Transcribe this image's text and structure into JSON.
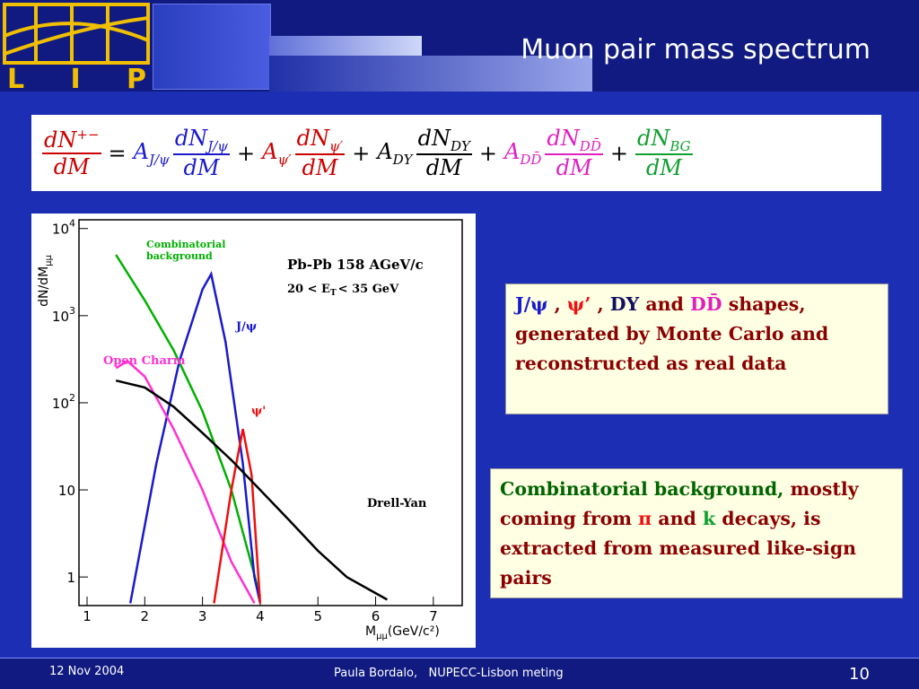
{
  "header": {
    "title": "Muon pair mass spectrum",
    "logo": "L I P"
  },
  "formula": {
    "lhs": {
      "num": "dN",
      "sup": "+−",
      "den": "dM",
      "color": "#cc0000"
    },
    "equals": "=",
    "plus": "+",
    "terms": [
      {
        "coef": "A",
        "sub": "J/ψ",
        "num": "dN",
        "den": "dM",
        "color": "#1a1acc"
      },
      {
        "coef": "A",
        "sub": "ψ′",
        "num": "dN",
        "den": "dM",
        "color": "#cc0000"
      },
      {
        "coef": "A",
        "sub": "DY",
        "num": "dN",
        "den": "dM",
        "color": "#000000"
      },
      {
        "coef": "A",
        "sub": "DD̄",
        "num": "dN",
        "den": "dM",
        "color": "#e020c0"
      },
      {
        "sub": "BG",
        "num": "dN",
        "den": "dM",
        "color": "#10a030"
      }
    ]
  },
  "chart_data": {
    "type": "line",
    "log_y": true,
    "y_label": {
      "main": "dN/dM",
      "sub": "μμ"
    },
    "x_label": {
      "main": "M",
      "sub": "μμ",
      "unit": "(GeV/c²)"
    },
    "xlim": [
      0.86,
      7.5
    ],
    "ylim": [
      0.47,
      12600
    ],
    "xticks": [
      1,
      2,
      3,
      4,
      5,
      6,
      7
    ],
    "yticks": [
      {
        "value": 1,
        "label": "1"
      },
      10,
      {
        "value": 100,
        "label": "10",
        "exponent": "2"
      },
      {
        "value": 1000,
        "label": "10",
        "exponent": "3"
      },
      {
        "value": 10000,
        "label": "10",
        "exponent": "4"
      }
    ],
    "annotations": [
      {
        "text": "Pb-Pb 158 AGeV/c"
      },
      {
        "text": "20 < E",
        "sub": "T",
        "after": "< 35 GeV"
      }
    ],
    "series": [
      {
        "name": "Combinatorial background",
        "color": "#00b000",
        "x": [
          1.5,
          2,
          2.5,
          3,
          3.5,
          4
        ],
        "values": [
          5000,
          1500,
          400,
          80,
          10,
          0.6
        ]
      },
      {
        "name": "J/ψ",
        "color": "#1a1acc",
        "x": [
          1.75,
          2.2,
          2.6,
          3.0,
          3.15,
          3.4,
          3.7,
          3.9,
          4.0
        ],
        "values": [
          0.5,
          20,
          300,
          2000,
          3000,
          500,
          20,
          1,
          0.5
        ]
      },
      {
        "name": "Open Charm",
        "color": "#ff30d0",
        "x": [
          1.5,
          1.7,
          2,
          2.5,
          3,
          3.5,
          3.9
        ],
        "values": [
          250,
          300,
          200,
          50,
          10,
          1.5,
          0.5
        ]
      },
      {
        "name": "ψ'",
        "color": "#ee1010",
        "x": [
          3.2,
          3.5,
          3.7,
          3.85,
          4.0
        ],
        "values": [
          0.5,
          10,
          50,
          15,
          0.5
        ]
      },
      {
        "name": "Drell-Yan",
        "color": "#000000",
        "x": [
          1.5,
          2,
          2.5,
          3,
          3.5,
          4,
          4.5,
          5,
          5.5,
          6.2
        ],
        "values": [
          180,
          150,
          90,
          45,
          22,
          10,
          4.5,
          2,
          1,
          0.55
        ]
      }
    ]
  },
  "box1": [
    {
      "text": "J/ψ",
      "color": "#1a1acc"
    },
    {
      "text": " , ",
      "color": "#8b0000"
    },
    {
      "text": "ψ’",
      "color": "#ee1010"
    },
    {
      "text": " , ",
      "color": "#8b0000"
    },
    {
      "text": "DY",
      "color": "#101060"
    },
    {
      "text": " and ",
      "color": "#8b0000"
    },
    {
      "text": "DD̄",
      "color": "#e020c0"
    },
    {
      "text": " shapes, generated by Monte Carlo and reconstructed as real data",
      "color": "#8b0000"
    }
  ],
  "box2": [
    {
      "text": "Combinatorial background,",
      "color": "#006400"
    },
    {
      "text": " mostly coming from ",
      "color": "#8b0000"
    },
    {
      "text": "π",
      "color": "#ee1010"
    },
    {
      "text": " and ",
      "color": "#8b0000"
    },
    {
      "text": "k",
      "color": "#10a030"
    },
    {
      "text": " decays, is extracted from measured like-sign pairs",
      "color": "#8b0000"
    }
  ],
  "footer": {
    "date": "12 Nov 2004",
    "center": "Paula Bordalo,   NUPECC-Lisbon meting",
    "page": "10"
  }
}
